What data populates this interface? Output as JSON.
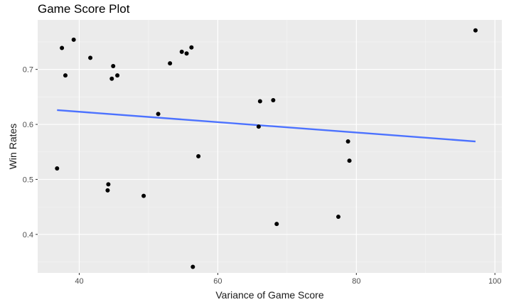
{
  "chart_data": {
    "type": "scatter",
    "title": "Game Score Plot",
    "xlabel": "Variance of Game Score",
    "ylabel": "Win Rates",
    "xlim": [
      34,
      101
    ],
    "ylim": [
      0.33,
      0.79
    ],
    "x_ticks": [
      40,
      60,
      80,
      100
    ],
    "y_ticks": [
      0.4,
      0.5,
      0.6,
      0.7
    ],
    "x_tick_labels": [
      "40",
      "60",
      "80",
      "100"
    ],
    "y_tick_labels": [
      "0.4",
      "0.5",
      "0.6",
      "0.7"
    ],
    "grid": true,
    "legend": "none",
    "points": [
      {
        "x": 36.8,
        "y": 0.52
      },
      {
        "x": 37.5,
        "y": 0.739
      },
      {
        "x": 38.0,
        "y": 0.689
      },
      {
        "x": 39.2,
        "y": 0.754
      },
      {
        "x": 41.6,
        "y": 0.721
      },
      {
        "x": 44.1,
        "y": 0.48
      },
      {
        "x": 44.2,
        "y": 0.491
      },
      {
        "x": 44.7,
        "y": 0.683
      },
      {
        "x": 44.9,
        "y": 0.706
      },
      {
        "x": 45.5,
        "y": 0.689
      },
      {
        "x": 49.3,
        "y": 0.47
      },
      {
        "x": 51.4,
        "y": 0.619
      },
      {
        "x": 53.1,
        "y": 0.711
      },
      {
        "x": 54.8,
        "y": 0.732
      },
      {
        "x": 55.5,
        "y": 0.729
      },
      {
        "x": 56.2,
        "y": 0.74
      },
      {
        "x": 56.4,
        "y": 0.341
      },
      {
        "x": 57.2,
        "y": 0.542
      },
      {
        "x": 65.9,
        "y": 0.596
      },
      {
        "x": 66.1,
        "y": 0.642
      },
      {
        "x": 68.0,
        "y": 0.644
      },
      {
        "x": 68.5,
        "y": 0.419
      },
      {
        "x": 77.4,
        "y": 0.432
      },
      {
        "x": 78.8,
        "y": 0.569
      },
      {
        "x": 79.0,
        "y": 0.534
      },
      {
        "x": 97.2,
        "y": 0.771
      }
    ],
    "trend_line": {
      "x": [
        36.8,
        97.2
      ],
      "y": [
        0.626,
        0.569
      ]
    },
    "colors": {
      "panel_background": "#ebebeb",
      "grid_major": "#ffffff",
      "grid_minor": "#f5f5f5",
      "points": "#000000",
      "trend_line": "#4c72ff"
    }
  }
}
